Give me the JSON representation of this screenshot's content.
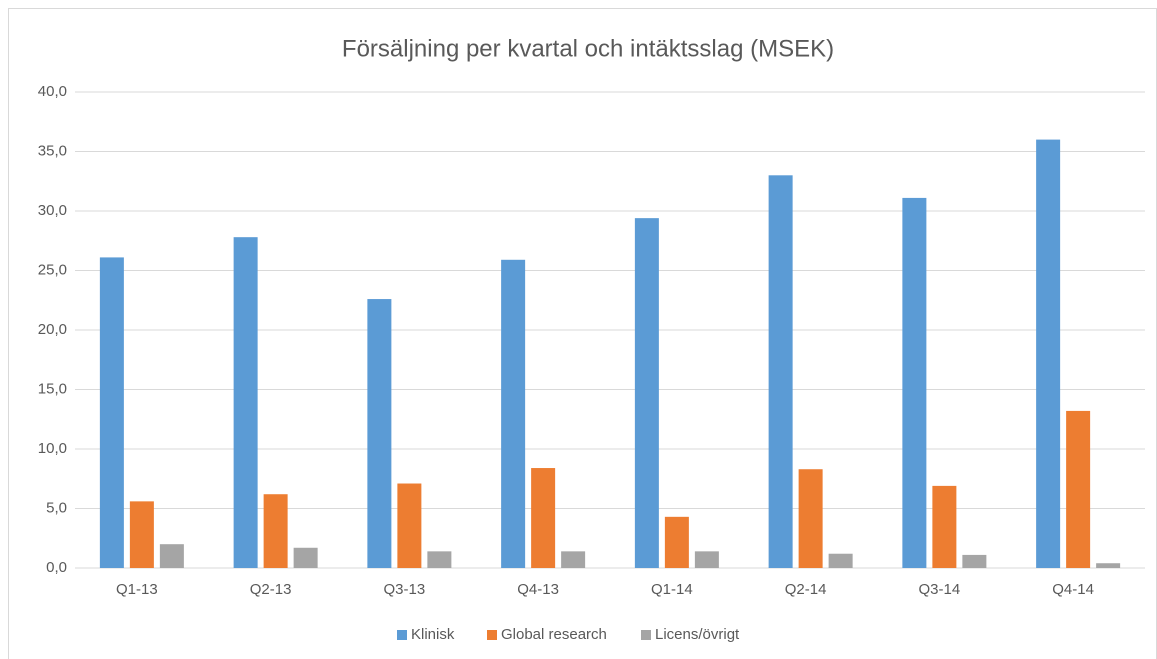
{
  "chart_data": {
    "type": "bar",
    "title": "Försäljning per kvartal och intäktsslag (MSEK)",
    "categories": [
      "Q1-13",
      "Q2-13",
      "Q3-13",
      "Q4-13",
      "Q1-14",
      "Q2-14",
      "Q3-14",
      "Q4-14"
    ],
    "series": [
      {
        "name": "Klinisk",
        "color": "#5b9bd5",
        "values": [
          26.1,
          27.8,
          22.6,
          25.9,
          29.4,
          33.0,
          31.1,
          36.0
        ]
      },
      {
        "name": "Global research",
        "color": "#ed7d31",
        "values": [
          5.6,
          6.2,
          7.1,
          8.4,
          4.3,
          8.3,
          6.9,
          13.2
        ]
      },
      {
        "name": "Licens/övrigt",
        "color": "#a5a5a5",
        "values": [
          2.0,
          1.7,
          1.4,
          1.4,
          1.4,
          1.2,
          1.1,
          0.4
        ]
      }
    ],
    "ylim": [
      0,
      40
    ],
    "yticks": [
      {
        "value": 0,
        "label": "0,0"
      },
      {
        "value": 5,
        "label": "5,0"
      },
      {
        "value": 10,
        "label": "10,0"
      },
      {
        "value": 15,
        "label": "15,0"
      },
      {
        "value": 20,
        "label": "20,0"
      },
      {
        "value": 25,
        "label": "25,0"
      },
      {
        "value": 30,
        "label": "30,0"
      },
      {
        "value": 35,
        "label": "35,0"
      },
      {
        "value": 40,
        "label": "40,0"
      }
    ],
    "grid": true,
    "legend": "bottom"
  }
}
